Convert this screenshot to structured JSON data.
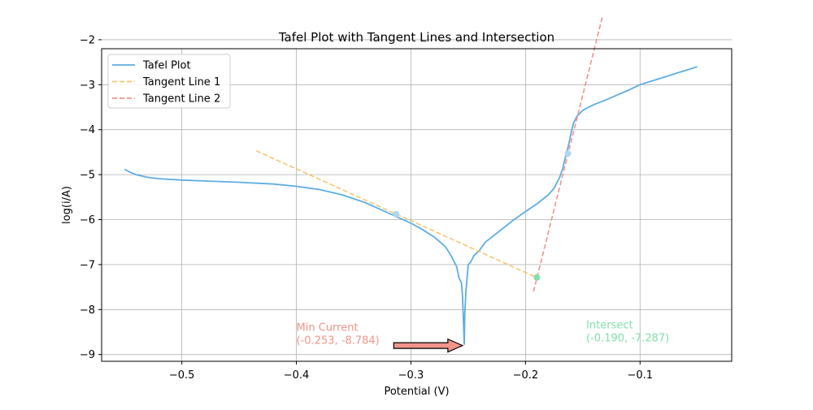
{
  "chart_data": {
    "type": "line",
    "title": "Tafel Plot with Tangent Lines and Intersection",
    "xlabel": "Potential (V)",
    "ylabel": "log(i/A)",
    "xlim": [
      -0.57,
      -0.02
    ],
    "ylim": [
      -9.15,
      -2.2
    ],
    "xticks": [
      -0.5,
      -0.4,
      -0.3,
      -0.2,
      -0.1
    ],
    "xtick_labels": [
      "−0.5",
      "−0.4",
      "−0.3",
      "−0.2",
      "−0.1"
    ],
    "yticks": [
      -9,
      -8,
      -7,
      -6,
      -5,
      -4,
      -3,
      -2
    ],
    "ytick_labels": [
      "−9",
      "−8",
      "−7",
      "−6",
      "−5",
      "−4",
      "−3",
      "−2"
    ],
    "grid": true,
    "legend": {
      "position": "top-left",
      "entries": [
        "Tafel Plot",
        "Tangent Line 1",
        "Tangent Line 2"
      ]
    },
    "series": [
      {
        "name": "Tafel Plot",
        "style": "solid",
        "color": "#5dade2",
        "x": [
          -0.55,
          -0.545,
          -0.54,
          -0.53,
          -0.52,
          -0.5,
          -0.48,
          -0.45,
          -0.42,
          -0.4,
          -0.38,
          -0.36,
          -0.34,
          -0.32,
          -0.3,
          -0.29,
          -0.28,
          -0.27,
          -0.265,
          -0.26,
          -0.258,
          -0.256,
          -0.255,
          -0.254,
          -0.2535,
          -0.253,
          -0.252,
          -0.251,
          -0.25,
          -0.248,
          -0.245,
          -0.24,
          -0.235,
          -0.23,
          -0.22,
          -0.21,
          -0.2,
          -0.19,
          -0.18,
          -0.175,
          -0.17,
          -0.168,
          -0.165,
          -0.162,
          -0.16,
          -0.158,
          -0.155,
          -0.152,
          -0.15,
          -0.145,
          -0.14,
          -0.13,
          -0.12,
          -0.11,
          -0.1,
          -0.09,
          -0.08,
          -0.07,
          -0.06,
          -0.05
        ],
        "y": [
          -4.88,
          -4.95,
          -5.0,
          -5.06,
          -5.09,
          -5.12,
          -5.14,
          -5.17,
          -5.21,
          -5.26,
          -5.33,
          -5.45,
          -5.62,
          -5.85,
          -6.08,
          -6.22,
          -6.38,
          -6.6,
          -6.8,
          -7.05,
          -7.3,
          -7.4,
          -7.7,
          -8.4,
          -8.784,
          -8.1,
          -7.6,
          -7.3,
          -7.0,
          -6.95,
          -6.8,
          -6.68,
          -6.5,
          -6.4,
          -6.2,
          -6.0,
          -5.82,
          -5.65,
          -5.45,
          -5.3,
          -5.05,
          -4.9,
          -4.6,
          -4.3,
          -4.05,
          -3.85,
          -3.7,
          -3.62,
          -3.57,
          -3.5,
          -3.44,
          -3.34,
          -3.23,
          -3.12,
          -3.0,
          -2.92,
          -2.84,
          -2.76,
          -2.68,
          -2.6
        ]
      },
      {
        "name": "Tangent Line 1",
        "style": "dashed",
        "color": "#f8c471",
        "x": [
          -0.435,
          -0.19
        ],
        "y": [
          -4.47,
          -7.29
        ]
      },
      {
        "name": "Tangent Line 2",
        "style": "dashed",
        "color": "#f1948a",
        "x": [
          -0.193,
          -0.133
        ],
        "y": [
          -7.6,
          -1.5
        ]
      }
    ],
    "tangent_points": [
      {
        "x": -0.313,
        "y": -5.88
      },
      {
        "x": -0.163,
        "y": -4.53
      }
    ],
    "intersection_point": {
      "x": -0.19,
      "y": -7.287
    },
    "annotations": {
      "min_current": {
        "line1": "Min Current",
        "line2": "(-0.253, -8.784)",
        "color": "#f1948a",
        "x": -0.4,
        "y": -8.4,
        "arrow_from": {
          "x": -0.315,
          "y": -8.8
        },
        "arrow_to": {
          "x": -0.255,
          "y": -8.8
        }
      },
      "intersect": {
        "line1": "Intersect",
        "line2": "(-0.190, -7.287)",
        "color": "#82e0aa",
        "x": -0.147,
        "y": -8.35
      }
    },
    "colors": {
      "tangent_point": "#aed6f1",
      "intersection": "#82e0aa",
      "arrow_fill": "#f1948a",
      "grid": "#b0b0b0"
    }
  }
}
